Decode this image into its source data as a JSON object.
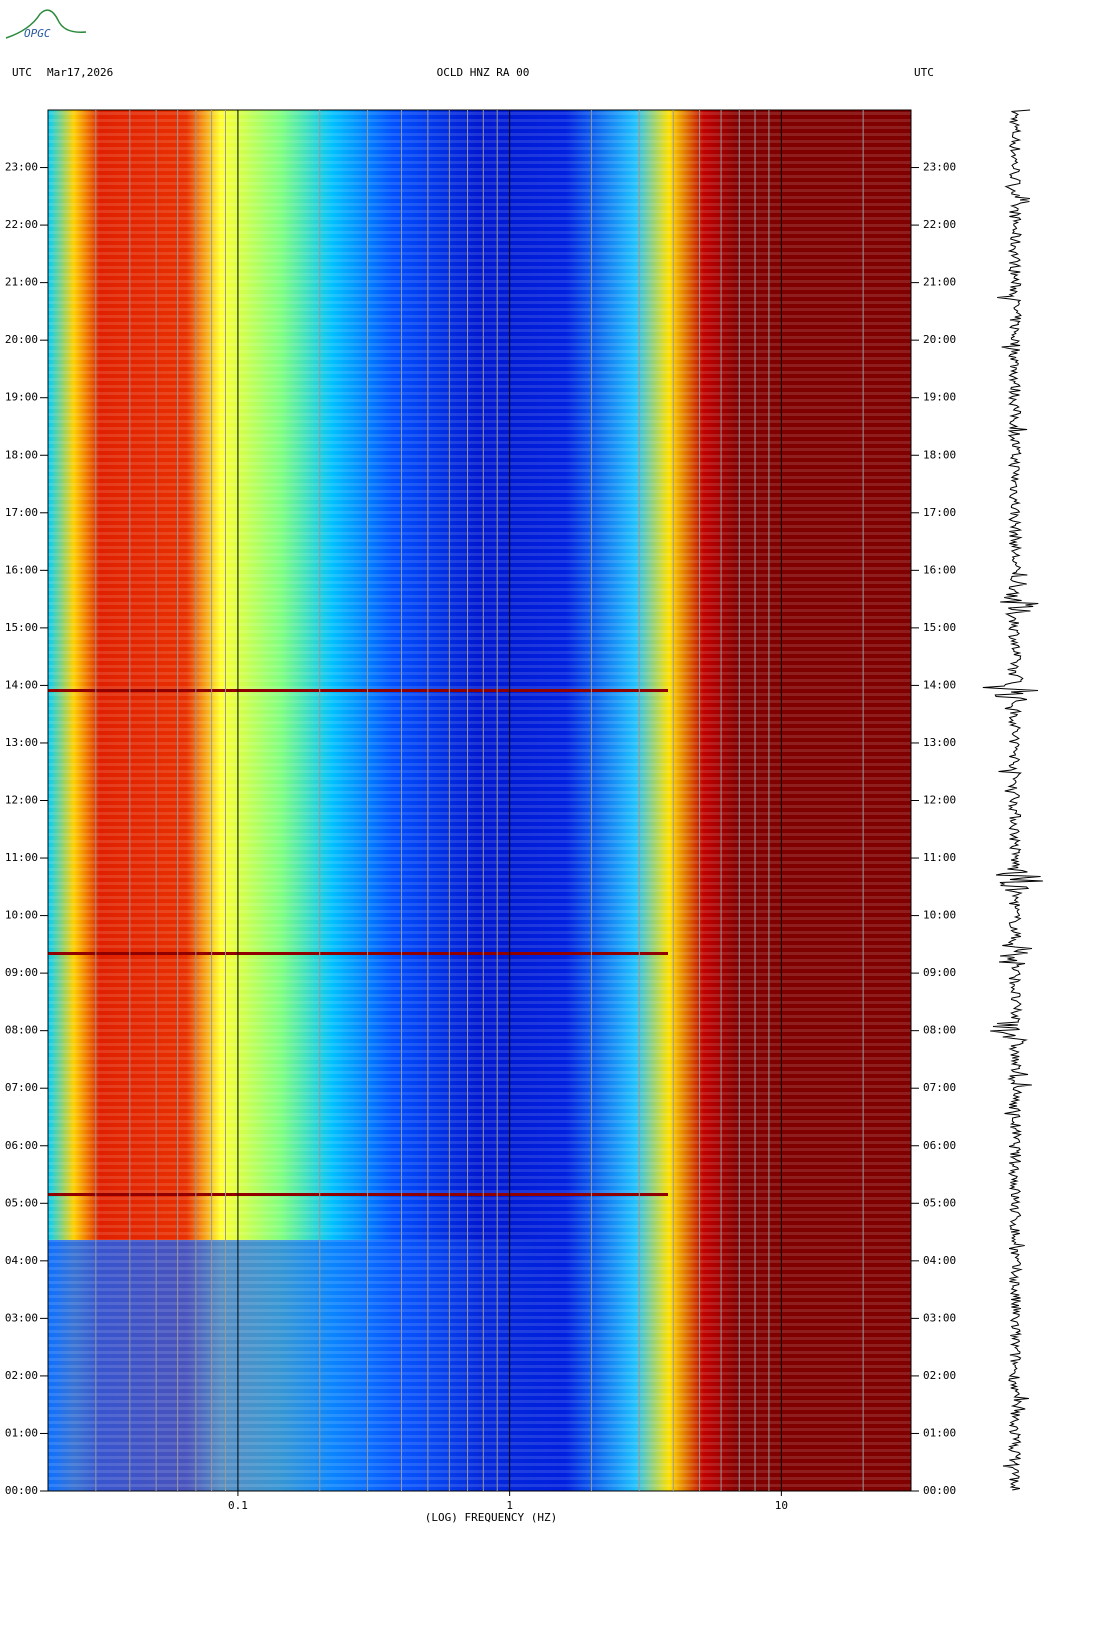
{
  "logo_text": "OPGC",
  "header": {
    "left_zone": "UTC",
    "date": "Mar17,2026",
    "station": "OCLD HNZ RA 00",
    "right_zone": "UTC"
  },
  "chart_data": {
    "type": "spectrogram",
    "x_label": "(LOG) FREQUENCY (HZ)",
    "x_scale": "log",
    "xlim": [
      0.02,
      30
    ],
    "xticks": [
      0.1,
      1,
      10
    ],
    "minor_xticks": [
      0.03,
      0.04,
      0.05,
      0.06,
      0.07,
      0.08,
      0.09,
      0.2,
      0.3,
      0.4,
      0.5,
      0.6,
      0.7,
      0.8,
      0.9,
      2,
      3,
      4,
      5,
      6,
      7,
      8,
      9,
      20
    ],
    "ylim": [
      0,
      24
    ],
    "yticks": [
      {
        "value": 0,
        "label": "00:00"
      },
      {
        "value": 1,
        "label": "01:00"
      },
      {
        "value": 2,
        "label": "02:00"
      },
      {
        "value": 3,
        "label": "03:00"
      },
      {
        "value": 4,
        "label": "04:00"
      },
      {
        "value": 5,
        "label": "05:00"
      },
      {
        "value": 6,
        "label": "06:00"
      },
      {
        "value": 7,
        "label": "07:00"
      },
      {
        "value": 8,
        "label": "08:00"
      },
      {
        "value": 9,
        "label": "09:00"
      },
      {
        "value": 10,
        "label": "10:00"
      },
      {
        "value": 11,
        "label": "11:00"
      },
      {
        "value": 12,
        "label": "12:00"
      },
      {
        "value": 13,
        "label": "13:00"
      },
      {
        "value": 14,
        "label": "14:00"
      },
      {
        "value": 15,
        "label": "15:00"
      },
      {
        "value": 16,
        "label": "16:00"
      },
      {
        "value": 17,
        "label": "17:00"
      },
      {
        "value": 18,
        "label": "18:00"
      },
      {
        "value": 19,
        "label": "19:00"
      },
      {
        "value": 20,
        "label": "20:00"
      },
      {
        "value": 21,
        "label": "21:00"
      },
      {
        "value": 22,
        "label": "22:00"
      },
      {
        "value": 23,
        "label": "23:00"
      }
    ]
  }
}
